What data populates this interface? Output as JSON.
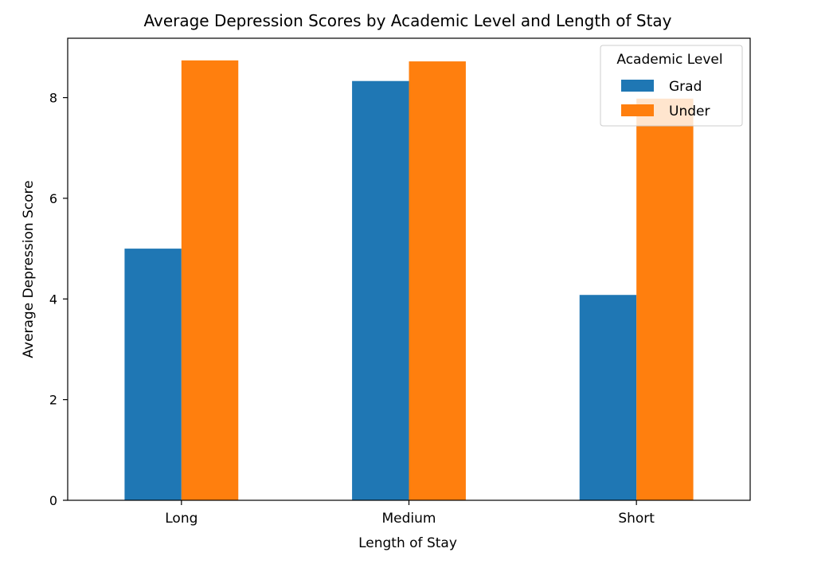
{
  "chart_data": {
    "type": "bar",
    "title": "Average Depression Scores by Academic Level and Length of Stay",
    "xlabel": "Length of Stay",
    "ylabel": "Average Depression Score",
    "categories": [
      "Long",
      "Medium",
      "Short"
    ],
    "series": [
      {
        "name": "Grad",
        "color": "#1f77b4",
        "values": [
          5.0,
          8.33,
          4.08
        ]
      },
      {
        "name": "Under",
        "color": "#ff7f0e",
        "values": [
          8.74,
          8.72,
          7.98
        ]
      }
    ],
    "ylim": [
      0,
      9.18
    ],
    "yticks": [
      0,
      2,
      4,
      6,
      8
    ],
    "grid": false,
    "legend": {
      "title": "Academic Level",
      "placement": "upper right"
    }
  }
}
